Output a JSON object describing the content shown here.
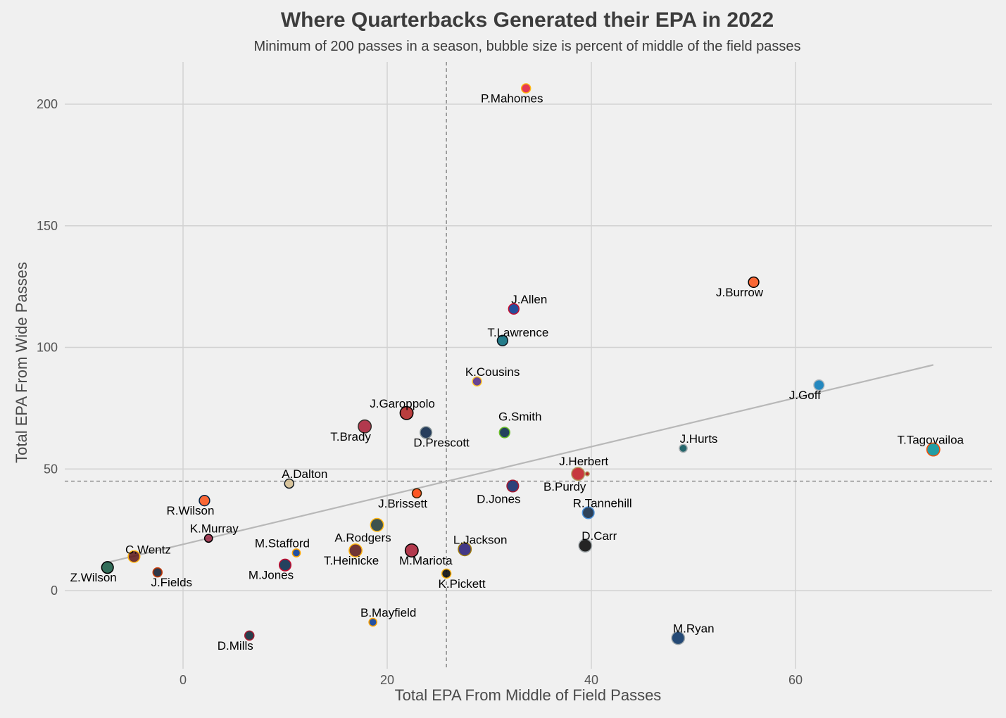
{
  "chart_data": {
    "type": "scatter",
    "title": "Where Quarterbacks Generated their EPA in 2022",
    "subtitle": "Minimum of 200 passes in a season, bubble size is percent of middle of the field passes",
    "xlabel": "Total EPA From Middle of Field Passes",
    "ylabel": "Total EPA From Wide Passes",
    "xlim": [
      -13,
      78
    ],
    "ylim": [
      -33,
      218
    ],
    "x_ticks": [
      0,
      20,
      40,
      60
    ],
    "y_ticks": [
      0,
      50,
      100,
      150,
      200
    ],
    "grid": true,
    "reference_lines": {
      "x_mean": 25.8,
      "y_mean": 45.0
    },
    "trend_line": {
      "x": [
        -7.5,
        73.5
      ],
      "y": [
        11.5,
        92.8
      ]
    },
    "points": [
      {
        "label": "P.Mahomes",
        "x": 33.6,
        "y": 206.5,
        "size": 5,
        "color": "#e31837",
        "edge": "#ffb612"
      },
      {
        "label": "J.Burrow",
        "x": 55.9,
        "y": 126.8,
        "size": 6,
        "color": "#fb4f14",
        "edge": "#000000"
      },
      {
        "label": "J.Allen",
        "x": 32.4,
        "y": 115.8,
        "size": 6,
        "color": "#00338d",
        "edge": "#c60c30"
      },
      {
        "label": "T.Lawrence",
        "x": 31.3,
        "y": 102.8,
        "size": 6,
        "color": "#006778",
        "edge": "#101820"
      },
      {
        "label": "K.Cousins",
        "x": 28.8,
        "y": 86.0,
        "size": 5,
        "color": "#4f2683",
        "edge": "#ffc62f"
      },
      {
        "label": "J.Goff",
        "x": 62.3,
        "y": 84.5,
        "size": 6,
        "color": "#0076b6",
        "edge": "#b0b7bc"
      },
      {
        "label": "J.Garoppolo",
        "x": 21.9,
        "y": 73.0,
        "size": 8,
        "color": "#a5acaf",
        "edge": "#000000",
        "fill": "#b01e1e"
      },
      {
        "label": "T.Brady",
        "x": 17.8,
        "y": 67.5,
        "size": 8,
        "color": "#a71930",
        "edge": "#322f2b"
      },
      {
        "label": "D.Prescott",
        "x": 23.8,
        "y": 65.0,
        "size": 7,
        "color": "#041e42",
        "edge": "#869397"
      },
      {
        "label": "G.Smith",
        "x": 31.5,
        "y": 65.0,
        "size": 6,
        "color": "#002244",
        "edge": "#69be28"
      },
      {
        "label": "J.Hurts",
        "x": 49.0,
        "y": 58.5,
        "size": 4,
        "color": "#004c54",
        "edge": "#a5acaf"
      },
      {
        "label": "T.Tagovailoa",
        "x": 73.5,
        "y": 58.0,
        "size": 8,
        "color": "#008e97",
        "edge": "#fc4c02"
      },
      {
        "label": "J.Herbert",
        "x": 38.7,
        "y": 48.0,
        "size": 8,
        "color": "#aa0000",
        "edge": "#b3995d",
        "fill": "#c0191f"
      },
      {
        "label": "B.Purdy",
        "x": 39.6,
        "y": 48.0,
        "size": 1,
        "color": "#aa0000",
        "edge": "#b3995d"
      },
      {
        "label": "A.Dalton",
        "x": 10.4,
        "y": 44.0,
        "size": 5,
        "color": "#d3bc8d",
        "edge": "#101820"
      },
      {
        "label": "D.Jones",
        "x": 32.3,
        "y": 43.0,
        "size": 7,
        "color": "#0b2265",
        "edge": "#a71930"
      },
      {
        "label": "J.Brissett",
        "x": 22.9,
        "y": 40.0,
        "size": 5,
        "color": "#ff3c00",
        "edge": "#311d00"
      },
      {
        "label": "R.Wilson",
        "x": 2.1,
        "y": 37.0,
        "size": 6,
        "color": "#fb4f14",
        "edge": "#002244"
      },
      {
        "label": "R.Tannehill",
        "x": 39.7,
        "y": 32.0,
        "size": 7,
        "color": "#0c2340",
        "edge": "#4b92db"
      },
      {
        "label": "A.Rodgers",
        "x": 19.0,
        "y": 27.0,
        "size": 8,
        "color": "#203731",
        "edge": "#ffb612"
      },
      {
        "label": "K.Murray",
        "x": 2.5,
        "y": 21.5,
        "size": 4,
        "color": "#97233f",
        "edge": "#000000"
      },
      {
        "label": "D.Carr",
        "x": 39.4,
        "y": 18.5,
        "size": 8,
        "color": "#000000",
        "edge": "#a5acaf"
      },
      {
        "label": "L.Jackson",
        "x": 27.6,
        "y": 17.0,
        "size": 8,
        "color": "#241773",
        "edge": "#9e7c0c"
      },
      {
        "label": "T.Heinicke",
        "x": 16.9,
        "y": 16.5,
        "size": 8,
        "color": "#5a1414",
        "edge": "#ffb612"
      },
      {
        "label": "M.Mariota",
        "x": 22.4,
        "y": 16.5,
        "size": 8,
        "color": "#a71930",
        "edge": "#000000"
      },
      {
        "label": "M.Stafford",
        "x": 11.1,
        "y": 15.5,
        "size": 4,
        "color": "#003594",
        "edge": "#ffa300"
      },
      {
        "label": "C.Wentz",
        "x": -4.8,
        "y": 14.0,
        "size": 7,
        "color": "#5a1414",
        "edge": "#ffb612"
      },
      {
        "label": "M.Jones",
        "x": 10.0,
        "y": 10.5,
        "size": 7,
        "color": "#002244",
        "edge": "#c60c30"
      },
      {
        "label": "Z.Wilson",
        "x": -7.4,
        "y": 9.5,
        "size": 7,
        "color": "#125740",
        "edge": "#000000"
      },
      {
        "label": "J.Fields",
        "x": -2.5,
        "y": 7.5,
        "size": 5,
        "color": "#0b162a",
        "edge": "#c83803"
      },
      {
        "label": "K.Pickett",
        "x": 25.8,
        "y": 7.0,
        "size": 5,
        "color": "#000000",
        "edge": "#ffb612"
      },
      {
        "label": "B.Mayfield",
        "x": 18.6,
        "y": -13.0,
        "size": 4,
        "color": "#003594",
        "edge": "#ffa300"
      },
      {
        "label": "D.Mills",
        "x": 6.5,
        "y": -18.5,
        "size": 5,
        "color": "#03202f",
        "edge": "#a71930"
      },
      {
        "label": "M.Ryan",
        "x": 48.5,
        "y": -19.5,
        "size": 8,
        "color": "#002c5f",
        "edge": "#a2aaad"
      }
    ]
  }
}
